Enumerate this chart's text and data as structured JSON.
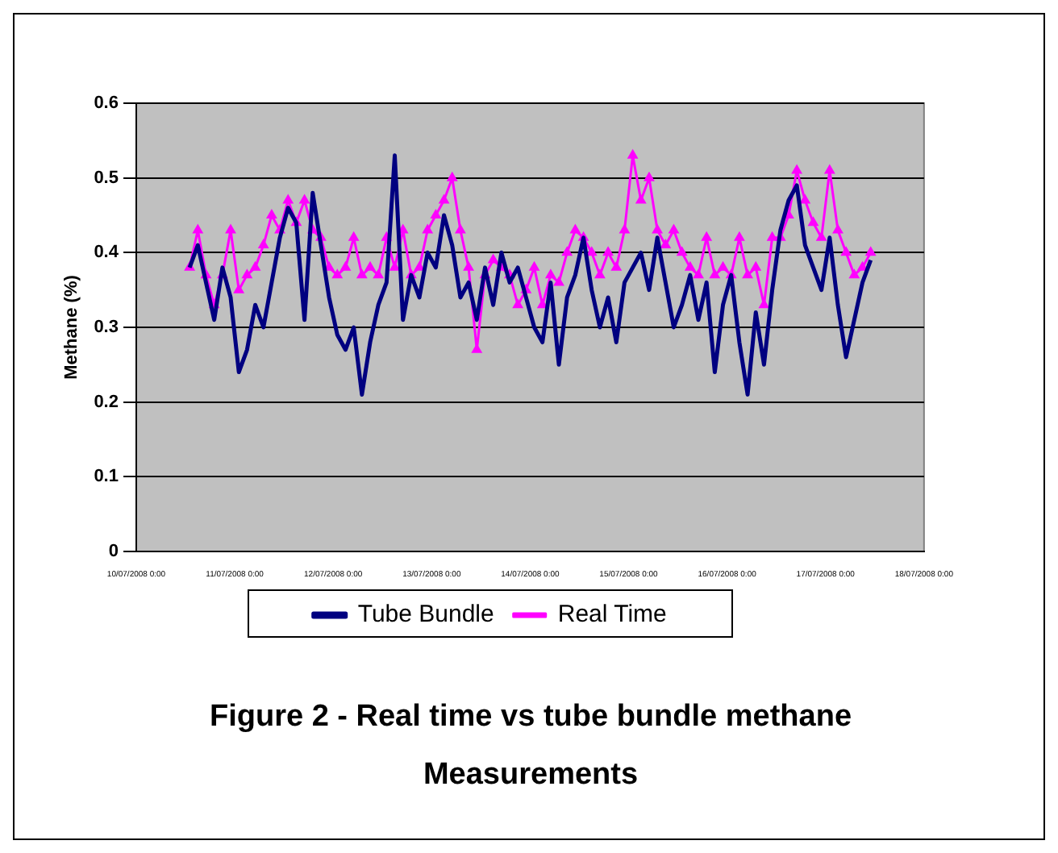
{
  "chart_data": {
    "type": "line",
    "title": "Figure 2 - Real time vs tube bundle methane Measurements",
    "ylabel": "Methane (%)",
    "x": [
      "2008-07-10T13:00",
      "2008-07-10T15:00",
      "2008-07-10T17:00",
      "2008-07-10T19:00",
      "2008-07-10T21:00",
      "2008-07-10T23:00",
      "2008-07-11T01:00",
      "2008-07-11T03:00",
      "2008-07-11T05:00",
      "2008-07-11T07:00",
      "2008-07-11T09:00",
      "2008-07-11T11:00",
      "2008-07-11T13:00",
      "2008-07-11T15:00",
      "2008-07-11T17:00",
      "2008-07-11T19:00",
      "2008-07-11T21:00",
      "2008-07-11T23:00",
      "2008-07-12T01:00",
      "2008-07-12T03:00",
      "2008-07-12T05:00",
      "2008-07-12T07:00",
      "2008-07-12T09:00",
      "2008-07-12T11:00",
      "2008-07-12T13:00",
      "2008-07-12T15:00",
      "2008-07-12T17:00",
      "2008-07-12T19:00",
      "2008-07-12T21:00",
      "2008-07-12T23:00",
      "2008-07-13T01:00",
      "2008-07-13T03:00",
      "2008-07-13T05:00",
      "2008-07-13T07:00",
      "2008-07-13T09:00",
      "2008-07-13T11:00",
      "2008-07-13T13:00",
      "2008-07-13T15:00",
      "2008-07-13T17:00",
      "2008-07-13T19:00",
      "2008-07-13T21:00",
      "2008-07-13T23:00",
      "2008-07-14T01:00",
      "2008-07-14T03:00",
      "2008-07-14T05:00",
      "2008-07-14T07:00",
      "2008-07-14T09:00",
      "2008-07-14T11:00",
      "2008-07-14T13:00",
      "2008-07-14T15:00",
      "2008-07-14T17:00",
      "2008-07-14T19:00",
      "2008-07-14T21:00",
      "2008-07-14T23:00",
      "2008-07-15T01:00",
      "2008-07-15T03:00",
      "2008-07-15T05:00",
      "2008-07-15T07:00",
      "2008-07-15T09:00",
      "2008-07-15T11:00",
      "2008-07-15T13:00",
      "2008-07-15T15:00",
      "2008-07-15T17:00",
      "2008-07-15T19:00",
      "2008-07-15T21:00",
      "2008-07-15T23:00",
      "2008-07-16T01:00",
      "2008-07-16T03:00",
      "2008-07-16T05:00",
      "2008-07-16T07:00",
      "2008-07-16T09:00",
      "2008-07-16T11:00",
      "2008-07-16T13:00",
      "2008-07-16T15:00",
      "2008-07-16T17:00",
      "2008-07-16T19:00",
      "2008-07-16T21:00",
      "2008-07-16T23:00",
      "2008-07-17T01:00",
      "2008-07-17T03:00",
      "2008-07-17T05:00",
      "2008-07-17T07:00",
      "2008-07-17T09:00",
      "2008-07-17T11:00"
    ],
    "series": [
      {
        "name": "Tube Bundle",
        "color": "#000080",
        "marker": "none",
        "values": [
          0.38,
          0.41,
          0.36,
          0.31,
          0.38,
          0.34,
          0.24,
          0.27,
          0.33,
          0.3,
          0.36,
          0.42,
          0.46,
          0.44,
          0.31,
          0.48,
          0.41,
          0.34,
          0.29,
          0.27,
          0.3,
          0.21,
          0.28,
          0.33,
          0.36,
          0.53,
          0.31,
          0.37,
          0.34,
          0.4,
          0.38,
          0.45,
          0.41,
          0.34,
          0.36,
          0.31,
          0.38,
          0.33,
          0.4,
          0.36,
          0.38,
          0.34,
          0.3,
          0.28,
          0.36,
          0.25,
          0.34,
          0.37,
          0.42,
          0.35,
          0.3,
          0.34,
          0.28,
          0.36,
          0.38,
          0.4,
          0.35,
          0.42,
          0.36,
          0.3,
          0.33,
          0.37,
          0.31,
          0.36,
          0.24,
          0.33,
          0.37,
          0.28,
          0.21,
          0.32,
          0.25,
          0.35,
          0.43,
          0.47,
          0.49,
          0.41,
          0.38,
          0.35,
          0.42,
          0.33,
          0.26,
          0.31,
          0.36,
          0.39
        ]
      },
      {
        "name": "Real Time",
        "color": "#ff00ff",
        "marker": "triangle",
        "values": [
          0.38,
          0.43,
          0.37,
          0.33,
          0.37,
          0.43,
          0.35,
          0.37,
          0.38,
          0.41,
          0.45,
          0.43,
          0.47,
          0.44,
          0.47,
          0.43,
          0.42,
          0.38,
          0.37,
          0.38,
          0.42,
          0.37,
          0.38,
          0.37,
          0.42,
          0.38,
          0.43,
          0.37,
          0.38,
          0.43,
          0.45,
          0.47,
          0.5,
          0.43,
          0.38,
          0.27,
          0.37,
          0.39,
          0.38,
          0.37,
          0.33,
          0.35,
          0.38,
          0.33,
          0.37,
          0.36,
          0.4,
          0.43,
          0.42,
          0.4,
          0.37,
          0.4,
          0.38,
          0.43,
          0.53,
          0.47,
          0.5,
          0.43,
          0.41,
          0.43,
          0.4,
          0.38,
          0.37,
          0.42,
          0.37,
          0.38,
          0.37,
          0.42,
          0.37,
          0.38,
          0.33,
          0.42,
          0.42,
          0.45,
          0.51,
          0.47,
          0.44,
          0.42,
          0.51,
          0.43,
          0.4,
          0.37,
          0.38,
          0.4
        ]
      }
    ],
    "xlim": [
      "2008-07-10T00:00",
      "2008-07-18T00:00"
    ],
    "xticks": [
      {
        "value": "2008-07-10T00:00",
        "label": "10/07/2008 0:00"
      },
      {
        "value": "2008-07-11T00:00",
        "label": "11/07/2008 0:00"
      },
      {
        "value": "2008-07-12T00:00",
        "label": "12/07/2008 0:00"
      },
      {
        "value": "2008-07-13T00:00",
        "label": "13/07/2008 0:00"
      },
      {
        "value": "2008-07-14T00:00",
        "label": "14/07/2008 0:00"
      },
      {
        "value": "2008-07-15T00:00",
        "label": "15/07/2008 0:00"
      },
      {
        "value": "2008-07-16T00:00",
        "label": "16/07/2008 0:00"
      },
      {
        "value": "2008-07-17T00:00",
        "label": "17/07/2008 0:00"
      },
      {
        "value": "2008-07-18T00:00",
        "label": "18/07/2008 0:00"
      }
    ],
    "ylim": [
      0,
      0.6
    ],
    "yticks": [
      0,
      0.1,
      0.2,
      0.3,
      0.4,
      0.5,
      0.6
    ],
    "grid": "y",
    "legend": "bottom",
    "line_style": "solid"
  }
}
